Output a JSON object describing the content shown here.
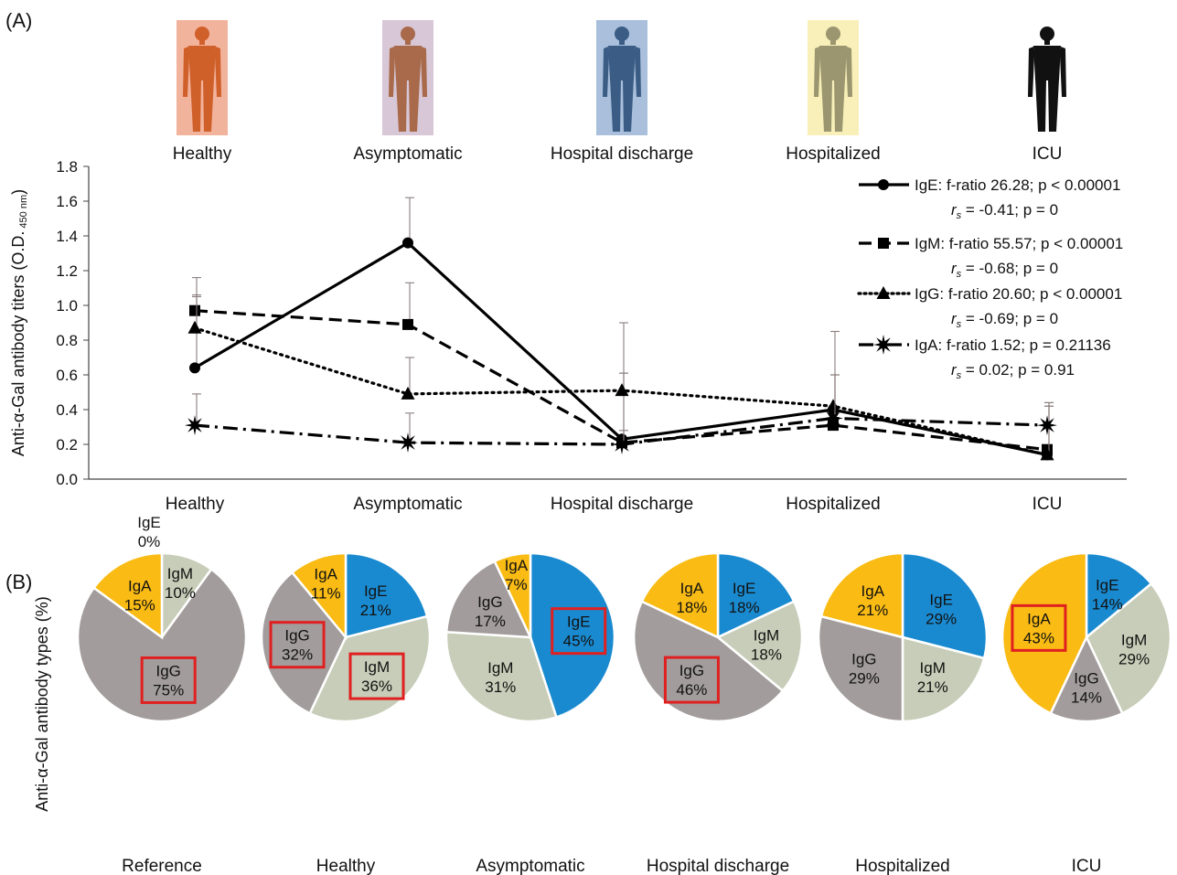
{
  "figure": {
    "panel_a_label": "(A)",
    "panel_b_label": "(B)"
  },
  "groups": [
    "Healthy",
    "Asymptomatic",
    "Hospital discharge",
    "Hospitalized",
    "ICU"
  ],
  "human_figures": [
    {
      "group": "Healthy",
      "body_color": "#d0602a",
      "bg_color": "#f2b39d"
    },
    {
      "group": "Asymptomatic",
      "body_color": "#a86a4a",
      "bg_color": "#d7c7d7"
    },
    {
      "group": "Hospital discharge",
      "body_color": "#3b5d85",
      "bg_color": "#a9bfdb"
    },
    {
      "group": "Hospitalized",
      "body_color": "#9b9570",
      "bg_color": "#f8f0b8"
    },
    {
      "group": "ICU",
      "body_color": "#111111",
      "bg_color": "#ffffff"
    }
  ],
  "chart_data": [
    {
      "type": "line",
      "ylabel": "Anti-α-Gal antibody titers (O.D.",
      "ylabel_sub": "450 nm",
      "ylabel_close": ")",
      "categories": [
        "Healthy",
        "Asymptomatic",
        "Hospital discharge",
        "Hospitalized",
        "ICU"
      ],
      "ylim": [
        0,
        1.8
      ],
      "yticks": [
        "0.0",
        "0.2",
        "0.4",
        "0.6",
        "0.8",
        "1.0",
        "1.2",
        "1.4",
        "1.6",
        "1.8"
      ],
      "grid": false,
      "legend_position": "top-right",
      "series": [
        {
          "name": "IgE",
          "stat": "IgE: f-ratio 26.28; p < 0.00001",
          "corr": "= -0.41; p = 0",
          "dash": "solid",
          "marker": "circle",
          "values": [
            0.64,
            1.36,
            0.23,
            0.4,
            0.14
          ],
          "err": [
            0.42,
            0.26,
            0.67,
            0.45,
            0.3
          ]
        },
        {
          "name": "IgM",
          "stat": "IgM: f-ratio 55.57; p < 0.00001",
          "corr": "= -0.68; p = 0",
          "dash": "dashed",
          "marker": "square",
          "values": [
            0.97,
            0.89,
            0.21,
            0.31,
            0.17
          ],
          "err": [
            0.19,
            0.24,
            0.4,
            0.29,
            0.25
          ]
        },
        {
          "name": "IgG",
          "stat": "IgG: f-ratio 20.60; p < 0.00001",
          "corr": "= -0.69; p = 0",
          "dash": "dotted",
          "marker": "triangle",
          "values": [
            0.87,
            0.49,
            0.51,
            0.42,
            0.14
          ],
          "err": [
            0.18,
            0.21,
            0.1,
            0.18,
            0.28
          ]
        },
        {
          "name": "IgA",
          "stat": "IgA: f-ratio 1.52; p = 0.21136",
          "corr": "= 0.02; p = 0.91",
          "dash": "dashdot",
          "marker": "star",
          "values": [
            0.31,
            0.21,
            0.2,
            0.35,
            0.31
          ],
          "err": [
            0.18,
            0.17,
            0.08,
            0.25,
            0.13
          ]
        }
      ]
    },
    {
      "type": "pie",
      "ylabel": "Anti-α-Gal antibody types (%)",
      "slice_colors": {
        "IgE": "#1a8ad0",
        "IgM": "#c7cdb8",
        "IgG": "#a39c9c",
        "IgA": "#f9bb14"
      },
      "highlight_color": "#e02020",
      "pies": [
        {
          "title": "Reference",
          "slices": [
            {
              "name": "IgE",
              "value": 0,
              "label": "IgE",
              "pct": "0%"
            },
            {
              "name": "IgM",
              "value": 10,
              "label": "IgM",
              "pct": "10%"
            },
            {
              "name": "IgG",
              "value": 75,
              "label": "IgG",
              "pct": "75%",
              "highlight": true
            },
            {
              "name": "IgA",
              "value": 15,
              "label": "IgA",
              "pct": "15%"
            }
          ]
        },
        {
          "title": "Healthy",
          "slices": [
            {
              "name": "IgE",
              "value": 21,
              "label": "IgE",
              "pct": "21%"
            },
            {
              "name": "IgM",
              "value": 36,
              "label": "IgM",
              "pct": "36%",
              "highlight": true
            },
            {
              "name": "IgG",
              "value": 32,
              "label": "IgG",
              "pct": "32%",
              "highlight": true
            },
            {
              "name": "IgA",
              "value": 11,
              "label": "IgA",
              "pct": "11%"
            }
          ]
        },
        {
          "title": "Asymptomatic",
          "slices": [
            {
              "name": "IgE",
              "value": 45,
              "label": "IgE",
              "pct": "45%",
              "highlight": true
            },
            {
              "name": "IgM",
              "value": 31,
              "label": "IgM",
              "pct": "31%"
            },
            {
              "name": "IgG",
              "value": 17,
              "label": "IgG",
              "pct": "17%"
            },
            {
              "name": "IgA",
              "value": 7,
              "label": "IgA",
              "pct": "7%"
            }
          ]
        },
        {
          "title": "Hospital discharge",
          "slices": [
            {
              "name": "IgE",
              "value": 18,
              "label": "IgE",
              "pct": "18%"
            },
            {
              "name": "IgM",
              "value": 18,
              "label": "IgM",
              "pct": "18%"
            },
            {
              "name": "IgG",
              "value": 46,
              "label": "IgG",
              "pct": "46%",
              "highlight": true
            },
            {
              "name": "IgA",
              "value": 18,
              "label": "IgA",
              "pct": "18%"
            }
          ]
        },
        {
          "title": "Hospitalized",
          "slices": [
            {
              "name": "IgE",
              "value": 29,
              "label": "IgE",
              "pct": "29%"
            },
            {
              "name": "IgM",
              "value": 21,
              "label": "IgM",
              "pct": "21%"
            },
            {
              "name": "IgG",
              "value": 29,
              "label": "IgG",
              "pct": "29%"
            },
            {
              "name": "IgA",
              "value": 21,
              "label": "IgA",
              "pct": "21%"
            }
          ]
        },
        {
          "title": "ICU",
          "slices": [
            {
              "name": "IgE",
              "value": 14,
              "label": "IgE",
              "pct": "14%"
            },
            {
              "name": "IgM",
              "value": 29,
              "label": "IgM",
              "pct": "29%"
            },
            {
              "name": "IgG",
              "value": 14,
              "label": "IgG",
              "pct": "14%"
            },
            {
              "name": "IgA",
              "value": 43,
              "label": "IgA",
              "pct": "43%",
              "highlight": true
            }
          ]
        }
      ]
    }
  ]
}
